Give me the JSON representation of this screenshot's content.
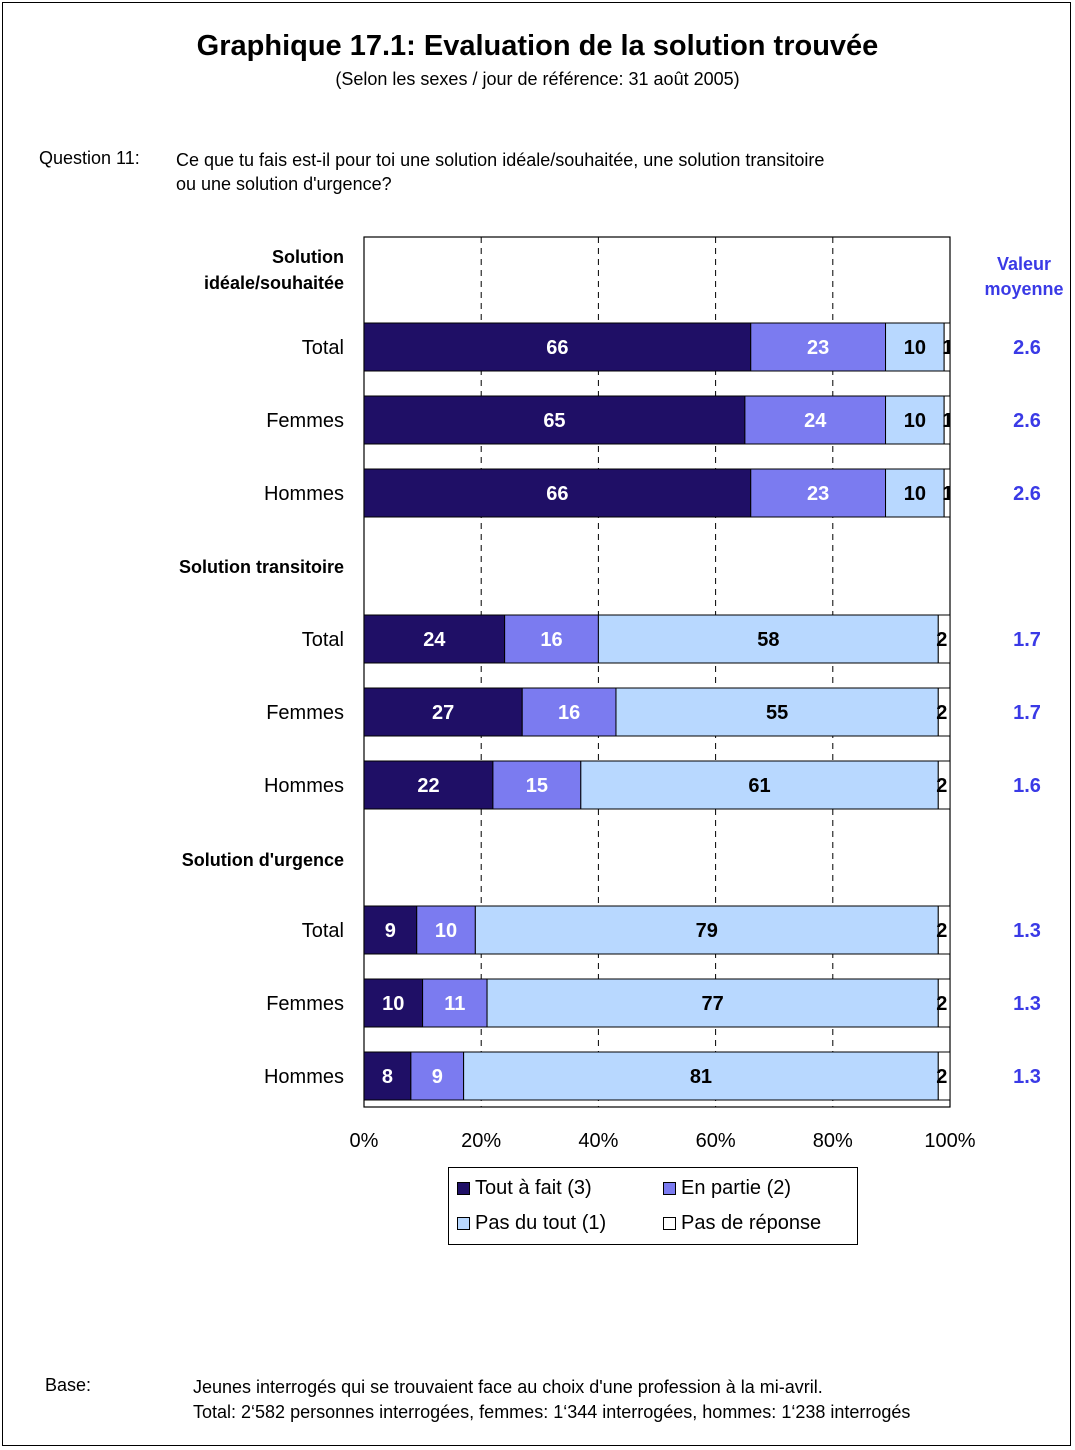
{
  "header": {
    "title": "Graphique 17.1: Evaluation de la solution trouvée",
    "subtitle": "(Selon les sexes / jour de référence: 31 août 2005)"
  },
  "question": {
    "label": "Question 11:",
    "line1": "Ce que tu fais est-il pour toi une solution idéale/souhaitée, une solution transitoire",
    "line2": "ou une solution d'urgence?"
  },
  "footer": {
    "label": "Base:",
    "line1": "Jeunes interrogés qui se trouvaient face au choix d'une profession à la mi-avril.",
    "line2": "Total: 2‘582 personnes interrogées, femmes: 1‘344 interrogées, hommes: 1‘238 interrogés"
  },
  "chart_data": {
    "type": "bar",
    "orientation": "horizontal",
    "stacked": "percent",
    "xlim": [
      0,
      100
    ],
    "x_ticks": [
      "0%",
      "20%",
      "40%",
      "60%",
      "80%",
      "100%"
    ],
    "grid": "vertical dashed",
    "mean_header": "Valeur moyenne",
    "groups": [
      {
        "heading": "Solution idéale/souhaitée",
        "rows": [
          {
            "label": "Total",
            "values": [
              66,
              23,
              10,
              1
            ],
            "mean": "2.6"
          },
          {
            "label": "Femmes",
            "values": [
              65,
              24,
              10,
              1
            ],
            "mean": "2.6"
          },
          {
            "label": "Hommes",
            "values": [
              66,
              23,
              10,
              1
            ],
            "mean": "2.6"
          }
        ]
      },
      {
        "heading": "Solution transitoire",
        "rows": [
          {
            "label": "Total",
            "values": [
              24,
              16,
              58,
              2
            ],
            "mean": "1.7"
          },
          {
            "label": "Femmes",
            "values": [
              27,
              16,
              55,
              2
            ],
            "mean": "1.7"
          },
          {
            "label": "Hommes",
            "values": [
              22,
              15,
              61,
              2
            ],
            "mean": "1.6"
          }
        ]
      },
      {
        "heading": "Solution d'urgence",
        "rows": [
          {
            "label": "Total",
            "values": [
              9,
              10,
              79,
              2
            ],
            "mean": "1.3"
          },
          {
            "label": "Femmes",
            "values": [
              10,
              11,
              77,
              2
            ],
            "mean": "1.3"
          },
          {
            "label": "Hommes",
            "values": [
              8,
              9,
              81,
              2
            ],
            "mean": "1.3"
          }
        ]
      }
    ],
    "series": [
      {
        "name": "Tout à fait (3)",
        "color": "#1f0f66",
        "label_color": "#ffffff"
      },
      {
        "name": "En partie (2)",
        "color": "#7b7bf0",
        "label_color": "#ffffff"
      },
      {
        "name": "Pas du tout (1)",
        "color": "#b8d8ff",
        "label_color": "#000000"
      },
      {
        "name": "Pas de réponse",
        "color": "#ffffff",
        "label_color": "#000000"
      }
    ],
    "mean_color": "#3a3ae6",
    "legend_position": "bottom"
  }
}
